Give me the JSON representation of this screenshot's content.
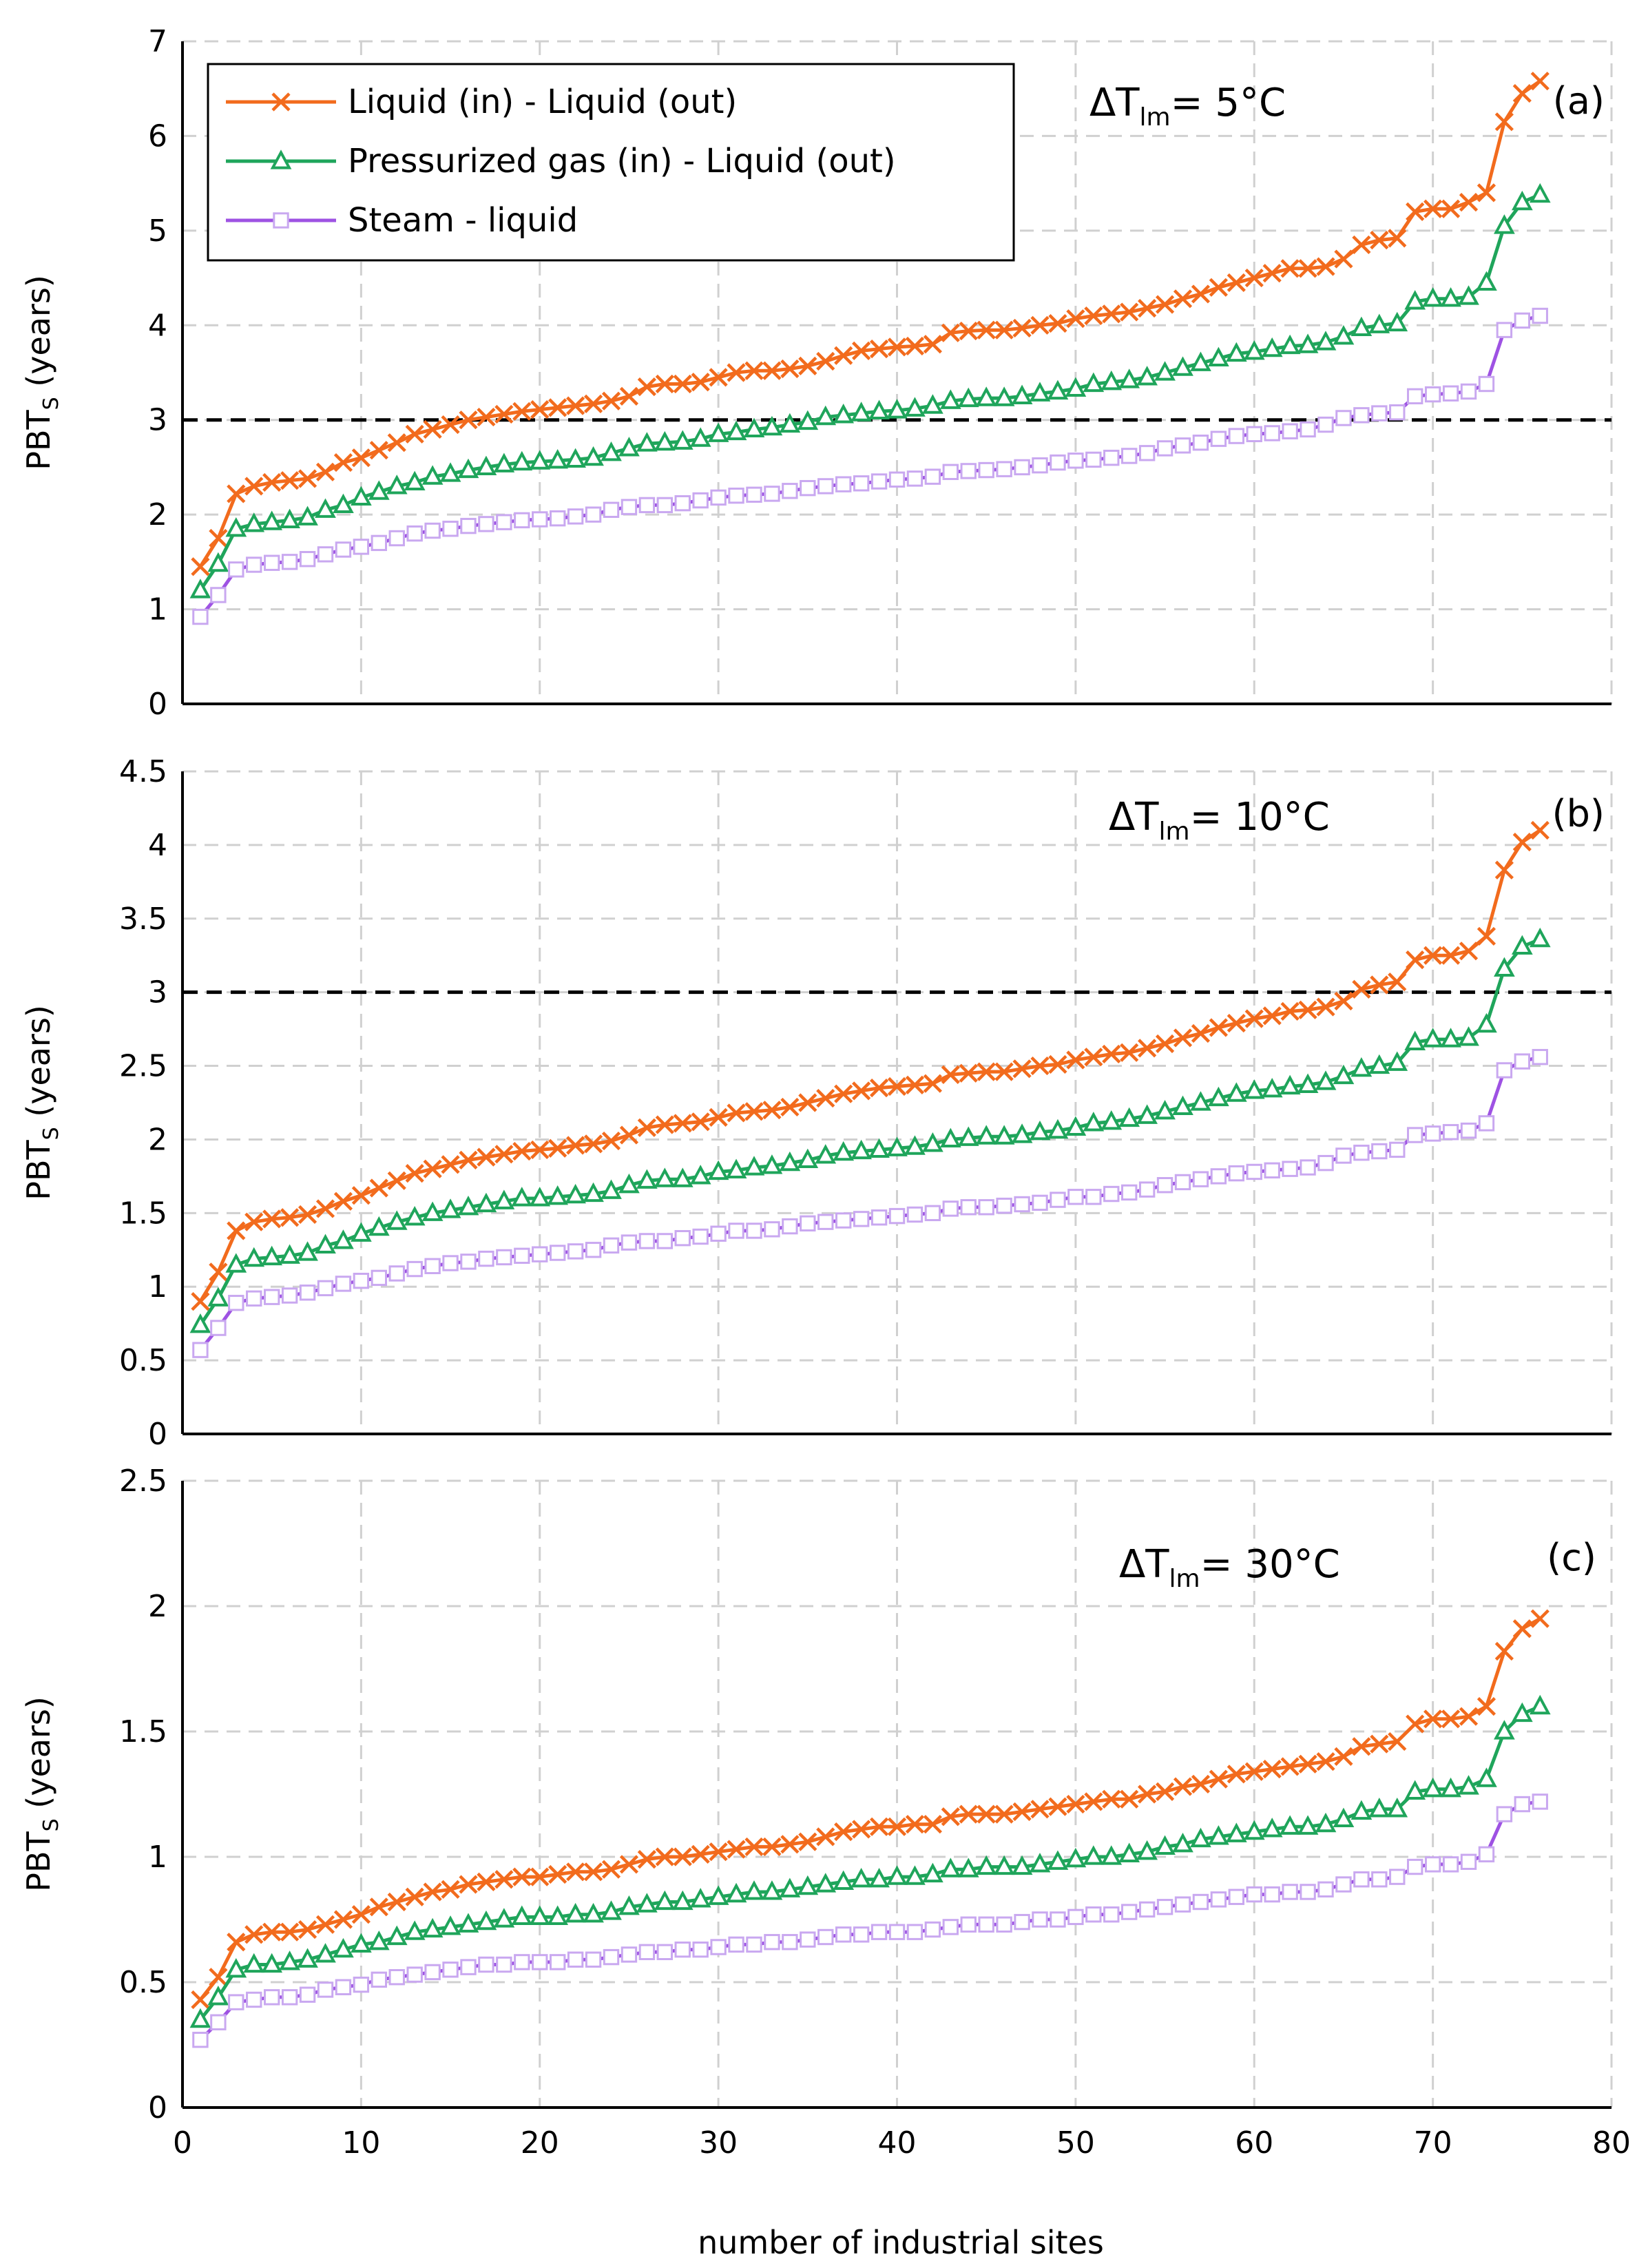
{
  "chart_data": {
    "type": "line",
    "xlabel": "number of industrial sites",
    "x_ticks": [
      "0",
      "10",
      "20",
      "30",
      "40",
      "50",
      "60",
      "70",
      "80"
    ],
    "xlim": [
      0,
      80
    ],
    "grid": true,
    "legend": {
      "placement": "top-left",
      "entries": [
        {
          "name": "Liquid (in) - Liquid (out)",
          "color": "#F26B1D",
          "marker": "x-mark"
        },
        {
          "name": "Pressurized gas (in) - Liquid (out)",
          "color": "#1FA55B",
          "marker": "triangle"
        },
        {
          "name": "Steam - liquid",
          "color": "#9E52E3",
          "marker": "square"
        }
      ]
    },
    "panels": [
      {
        "id": "a",
        "tag": "(a)",
        "delta_t_label": "ΔT",
        "delta_t_sub": "lm",
        "delta_t_value": "= 5°C",
        "ylabel_main": "PBT",
        "ylabel_sub": "S",
        "ylabel_rest": " (years)",
        "ylim": [
          0,
          7
        ],
        "y_ticks": [
          "0",
          "1",
          "2",
          "3",
          "4",
          "5",
          "6",
          "7"
        ],
        "threshold": 3.0,
        "series": [
          {
            "name": "Liquid (in) - Liquid (out)",
            "values": [
              1.45,
              1.75,
              2.22,
              2.3,
              2.34,
              2.36,
              2.38,
              2.45,
              2.55,
              2.6,
              2.68,
              2.76,
              2.85,
              2.9,
              2.95,
              3.0,
              3.03,
              3.06,
              3.09,
              3.11,
              3.13,
              3.15,
              3.17,
              3.2,
              3.25,
              3.35,
              3.38,
              3.38,
              3.4,
              3.45,
              3.5,
              3.52,
              3.52,
              3.54,
              3.57,
              3.62,
              3.68,
              3.73,
              3.75,
              3.77,
              3.78,
              3.8,
              3.92,
              3.94,
              3.95,
              3.95,
              3.97,
              4.0,
              4.02,
              4.07,
              4.1,
              4.12,
              4.14,
              4.18,
              4.22,
              4.28,
              4.33,
              4.4,
              4.45,
              4.5,
              4.55,
              4.6,
              4.6,
              4.62,
              4.7,
              4.85,
              4.9,
              4.92,
              5.2,
              5.23,
              5.23,
              5.3,
              5.4,
              6.15,
              6.45,
              6.58
            ]
          },
          {
            "name": "Pressurized gas (in) - Liquid (out)",
            "values": [
              1.2,
              1.48,
              1.85,
              1.9,
              1.92,
              1.94,
              1.97,
              2.05,
              2.1,
              2.18,
              2.24,
              2.3,
              2.34,
              2.4,
              2.43,
              2.47,
              2.5,
              2.53,
              2.55,
              2.56,
              2.57,
              2.58,
              2.6,
              2.65,
              2.7,
              2.75,
              2.76,
              2.77,
              2.8,
              2.85,
              2.87,
              2.9,
              2.92,
              2.95,
              2.98,
              3.03,
              3.05,
              3.07,
              3.09,
              3.1,
              3.12,
              3.15,
              3.2,
              3.22,
              3.23,
              3.23,
              3.25,
              3.28,
              3.3,
              3.33,
              3.38,
              3.4,
              3.42,
              3.45,
              3.5,
              3.55,
              3.6,
              3.65,
              3.7,
              3.72,
              3.75,
              3.78,
              3.79,
              3.82,
              3.88,
              3.97,
              4.0,
              4.02,
              4.25,
              4.28,
              4.28,
              4.3,
              4.45,
              5.05,
              5.3,
              5.38
            ]
          },
          {
            "name": "Steam - liquid",
            "values": [
              0.92,
              1.15,
              1.42,
              1.47,
              1.49,
              1.5,
              1.53,
              1.58,
              1.63,
              1.66,
              1.7,
              1.75,
              1.8,
              1.83,
              1.85,
              1.88,
              1.9,
              1.92,
              1.94,
              1.95,
              1.96,
              1.98,
              2.0,
              2.05,
              2.08,
              2.1,
              2.1,
              2.12,
              2.15,
              2.18,
              2.2,
              2.21,
              2.22,
              2.25,
              2.28,
              2.3,
              2.32,
              2.33,
              2.35,
              2.37,
              2.38,
              2.4,
              2.45,
              2.46,
              2.47,
              2.48,
              2.5,
              2.52,
              2.55,
              2.57,
              2.58,
              2.6,
              2.62,
              2.65,
              2.7,
              2.73,
              2.76,
              2.8,
              2.83,
              2.85,
              2.86,
              2.88,
              2.9,
              2.95,
              3.02,
              3.05,
              3.07,
              3.08,
              3.25,
              3.27,
              3.28,
              3.3,
              3.38,
              3.95,
              4.05,
              4.1
            ]
          }
        ]
      },
      {
        "id": "b",
        "tag": "(b)",
        "delta_t_label": "ΔT",
        "delta_t_sub": "lm",
        "delta_t_value": "= 10°C",
        "ylabel_main": "PBT",
        "ylabel_sub": "S",
        "ylabel_rest": " (years)",
        "ylim": [
          0,
          4.5
        ],
        "y_ticks": [
          "0",
          "0.5",
          "1",
          "1.5",
          "2",
          "2.5",
          "3",
          "3.5",
          "4",
          "4.5"
        ],
        "threshold": 3.0,
        "series": [
          {
            "name": "Liquid (in) - Liquid (out)",
            "values": [
              0.9,
              1.1,
              1.38,
              1.44,
              1.46,
              1.47,
              1.49,
              1.53,
              1.58,
              1.62,
              1.67,
              1.72,
              1.77,
              1.8,
              1.83,
              1.86,
              1.88,
              1.9,
              1.92,
              1.93,
              1.94,
              1.96,
              1.97,
              1.99,
              2.03,
              2.08,
              2.1,
              2.11,
              2.12,
              2.15,
              2.18,
              2.19,
              2.2,
              2.22,
              2.25,
              2.28,
              2.31,
              2.33,
              2.35,
              2.36,
              2.37,
              2.38,
              2.44,
              2.45,
              2.46,
              2.46,
              2.48,
              2.5,
              2.51,
              2.54,
              2.56,
              2.58,
              2.59,
              2.62,
              2.65,
              2.69,
              2.72,
              2.76,
              2.79,
              2.82,
              2.84,
              2.87,
              2.88,
              2.9,
              2.94,
              3.02,
              3.05,
              3.07,
              3.22,
              3.25,
              3.25,
              3.28,
              3.38,
              3.83,
              4.02,
              4.1
            ]
          },
          {
            "name": "Pressurized gas (in) - Liquid (out)",
            "values": [
              0.74,
              0.92,
              1.15,
              1.19,
              1.2,
              1.21,
              1.23,
              1.28,
              1.31,
              1.36,
              1.4,
              1.44,
              1.47,
              1.5,
              1.52,
              1.54,
              1.56,
              1.58,
              1.6,
              1.6,
              1.61,
              1.62,
              1.63,
              1.65,
              1.69,
              1.72,
              1.73,
              1.73,
              1.75,
              1.78,
              1.79,
              1.81,
              1.82,
              1.84,
              1.86,
              1.89,
              1.91,
              1.92,
              1.93,
              1.94,
              1.95,
              1.97,
              2.0,
              2.01,
              2.02,
              2.02,
              2.03,
              2.05,
              2.06,
              2.08,
              2.11,
              2.12,
              2.14,
              2.16,
              2.19,
              2.22,
              2.25,
              2.28,
              2.31,
              2.33,
              2.34,
              2.36,
              2.37,
              2.39,
              2.43,
              2.48,
              2.5,
              2.52,
              2.66,
              2.68,
              2.68,
              2.69,
              2.78,
              3.16,
              3.31,
              3.36
            ]
          },
          {
            "name": "Steam - liquid",
            "values": [
              0.57,
              0.72,
              0.89,
              0.92,
              0.93,
              0.94,
              0.96,
              0.99,
              1.02,
              1.04,
              1.06,
              1.09,
              1.12,
              1.14,
              1.16,
              1.17,
              1.19,
              1.2,
              1.21,
              1.22,
              1.23,
              1.24,
              1.25,
              1.28,
              1.3,
              1.31,
              1.31,
              1.33,
              1.34,
              1.36,
              1.38,
              1.38,
              1.39,
              1.41,
              1.43,
              1.44,
              1.45,
              1.46,
              1.47,
              1.48,
              1.49,
              1.5,
              1.53,
              1.54,
              1.54,
              1.55,
              1.56,
              1.57,
              1.59,
              1.61,
              1.61,
              1.63,
              1.64,
              1.66,
              1.69,
              1.71,
              1.73,
              1.75,
              1.77,
              1.78,
              1.79,
              1.8,
              1.81,
              1.84,
              1.89,
              1.91,
              1.92,
              1.93,
              2.03,
              2.04,
              2.05,
              2.06,
              2.11,
              2.47,
              2.53,
              2.56
            ]
          }
        ]
      },
      {
        "id": "c",
        "tag": "(c)",
        "delta_t_label": "ΔT",
        "delta_t_sub": "lm",
        "delta_t_value": "= 30°C",
        "ylabel_main": "PBT",
        "ylabel_sub": "S",
        "ylabel_rest": " (years)",
        "ylim": [
          0,
          2.5
        ],
        "y_ticks": [
          "0",
          "0.5",
          "1",
          "1.5",
          "2",
          "2.5"
        ],
        "threshold": null,
        "series": [
          {
            "name": "Liquid (in) - Liquid (out)",
            "values": [
              0.43,
              0.52,
              0.66,
              0.69,
              0.7,
              0.7,
              0.71,
              0.73,
              0.75,
              0.77,
              0.8,
              0.82,
              0.84,
              0.86,
              0.87,
              0.89,
              0.9,
              0.91,
              0.92,
              0.92,
              0.93,
              0.94,
              0.94,
              0.95,
              0.97,
              0.99,
              1.0,
              1.0,
              1.01,
              1.02,
              1.03,
              1.04,
              1.04,
              1.05,
              1.06,
              1.08,
              1.1,
              1.11,
              1.12,
              1.12,
              1.13,
              1.13,
              1.16,
              1.17,
              1.17,
              1.17,
              1.18,
              1.19,
              1.2,
              1.21,
              1.22,
              1.23,
              1.23,
              1.25,
              1.26,
              1.28,
              1.29,
              1.31,
              1.33,
              1.34,
              1.35,
              1.36,
              1.37,
              1.38,
              1.4,
              1.44,
              1.45,
              1.46,
              1.53,
              1.55,
              1.55,
              1.56,
              1.6,
              1.82,
              1.91,
              1.95
            ]
          },
          {
            "name": "Pressurized gas (in) - Liquid (out)",
            "values": [
              0.35,
              0.44,
              0.55,
              0.57,
              0.57,
              0.58,
              0.59,
              0.61,
              0.63,
              0.65,
              0.66,
              0.68,
              0.7,
              0.71,
              0.72,
              0.73,
              0.74,
              0.75,
              0.76,
              0.76,
              0.76,
              0.77,
              0.77,
              0.78,
              0.8,
              0.81,
              0.82,
              0.82,
              0.83,
              0.84,
              0.85,
              0.86,
              0.86,
              0.87,
              0.88,
              0.89,
              0.9,
              0.91,
              0.91,
              0.92,
              0.92,
              0.93,
              0.95,
              0.95,
              0.96,
              0.96,
              0.96,
              0.97,
              0.98,
              0.99,
              1.0,
              1.0,
              1.01,
              1.02,
              1.04,
              1.05,
              1.07,
              1.08,
              1.09,
              1.1,
              1.11,
              1.12,
              1.12,
              1.13,
              1.15,
              1.18,
              1.19,
              1.19,
              1.26,
              1.27,
              1.27,
              1.28,
              1.31,
              1.5,
              1.57,
              1.6
            ]
          },
          {
            "name": "Steam - liquid",
            "values": [
              0.27,
              0.34,
              0.42,
              0.43,
              0.44,
              0.44,
              0.45,
              0.47,
              0.48,
              0.49,
              0.51,
              0.52,
              0.53,
              0.54,
              0.55,
              0.56,
              0.57,
              0.57,
              0.58,
              0.58,
              0.58,
              0.59,
              0.59,
              0.6,
              0.61,
              0.62,
              0.62,
              0.63,
              0.63,
              0.64,
              0.65,
              0.65,
              0.66,
              0.66,
              0.67,
              0.68,
              0.69,
              0.69,
              0.7,
              0.7,
              0.7,
              0.71,
              0.72,
              0.73,
              0.73,
              0.73,
              0.74,
              0.75,
              0.75,
              0.76,
              0.77,
              0.77,
              0.78,
              0.79,
              0.8,
              0.81,
              0.82,
              0.83,
              0.84,
              0.85,
              0.85,
              0.86,
              0.86,
              0.87,
              0.89,
              0.91,
              0.91,
              0.92,
              0.96,
              0.97,
              0.97,
              0.98,
              1.01,
              1.17,
              1.21,
              1.22
            ]
          }
        ]
      }
    ]
  }
}
